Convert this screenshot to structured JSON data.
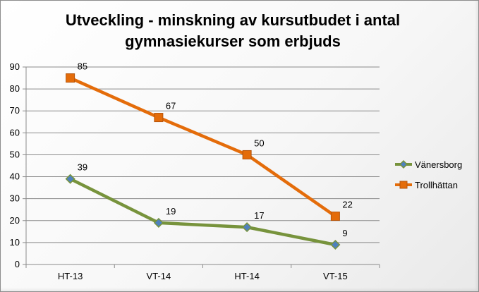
{
  "chart_data": {
    "type": "line",
    "title": "Utveckling - minskning av kursutbudet i antal\ngymnasiekurser som erbjuds",
    "xlabel": "",
    "ylabel": "",
    "categories": [
      "HT-13",
      "VT-14",
      "HT-14",
      "VT-15"
    ],
    "ylim": [
      0,
      90
    ],
    "yticks": [
      "0",
      "10",
      "20",
      "30",
      "40",
      "50",
      "60",
      "70",
      "80",
      "90"
    ],
    "grid": "horizontal",
    "legend": "right",
    "series": [
      {
        "name": "Vänersborg",
        "values": [
          39,
          19,
          17,
          9
        ],
        "labels": [
          "39",
          "19",
          "17",
          "9"
        ],
        "color": "#77933c",
        "marker": "diamond",
        "marker_color": "#4f81bd"
      },
      {
        "name": "Trollhättan",
        "values": [
          85,
          67,
          50,
          22
        ],
        "labels": [
          "85",
          "67",
          "50",
          "22"
        ],
        "color": "#e46c0a",
        "marker": "square",
        "marker_color": "#e46c0a"
      }
    ]
  }
}
